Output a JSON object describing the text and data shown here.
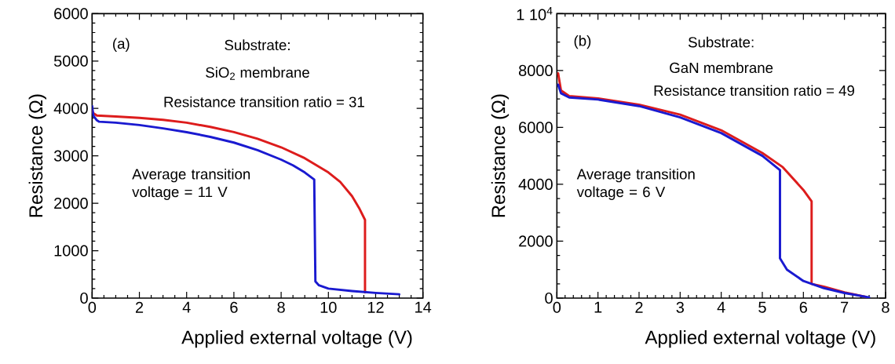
{
  "chart_data": [
    {
      "type": "line",
      "xlabel": "Applied external voltage (V)",
      "ylabel": "Resistance (Ω)",
      "xlim": [
        0,
        14
      ],
      "ylim": [
        0,
        6000
      ],
      "xticks": [
        0,
        2,
        4,
        6,
        8,
        10,
        12,
        14
      ],
      "yticks": [
        0,
        1000,
        2000,
        3000,
        4000,
        5000,
        6000
      ],
      "annotations": [
        "(a)",
        "Substrate:",
        "SiO$_{2}$ membrane",
        "Resistance transition ratio = 31",
        "Average transition voltage = 11 V"
      ],
      "series": [
        {
          "color": "#dd1c1c",
          "x": [
            0,
            0.05,
            0.2,
            1,
            2,
            3,
            4,
            5,
            6,
            7,
            8,
            9,
            10,
            10.5,
            11,
            11.3,
            11.5,
            11.55,
            11.55
          ],
          "values": [
            3950,
            3900,
            3850,
            3830,
            3800,
            3760,
            3700,
            3610,
            3500,
            3360,
            3180,
            2950,
            2650,
            2450,
            2150,
            1900,
            1700,
            1650,
            120
          ]
        },
        {
          "color": "#1a1ad0",
          "x": [
            0,
            0.05,
            0.2,
            0.3,
            1,
            2,
            3,
            4,
            5,
            6,
            7,
            8,
            8.5,
            9,
            9.4,
            9.45,
            9.6,
            10,
            11,
            12,
            13
          ],
          "values": [
            4050,
            3850,
            3750,
            3720,
            3700,
            3650,
            3580,
            3500,
            3400,
            3280,
            3120,
            2920,
            2800,
            2650,
            2500,
            350,
            270,
            200,
            150,
            110,
            80
          ]
        }
      ]
    },
    {
      "type": "line",
      "xlabel": "Applied external voltage (V)",
      "ylabel": "Resistance (Ω)",
      "xlim": [
        0,
        8
      ],
      "ylim": [
        0,
        10000
      ],
      "xticks": [
        0,
        1,
        2,
        3,
        4,
        5,
        6,
        7,
        8
      ],
      "yticks": [
        0,
        2000,
        4000,
        6000,
        8000,
        {
          "value": 10000,
          "label": "1 10$^{4}$"
        }
      ],
      "annotations": [
        "(b)",
        "Substrate:",
        "GaN membrane",
        "Resistance transition ratio = 49",
        "Average transition voltage = 6 V"
      ],
      "series": [
        {
          "color": "#dd1c1c",
          "x": [
            0.03,
            0.1,
            0.3,
            1,
            2,
            3,
            4,
            5,
            5.5,
            6,
            6.2,
            6.2,
            6.5,
            7,
            7.5
          ],
          "values": [
            7900,
            7300,
            7100,
            7020,
            6800,
            6450,
            5900,
            5100,
            4600,
            3800,
            3400,
            500,
            400,
            200,
            50
          ]
        },
        {
          "color": "#1a1ad0",
          "x": [
            0.03,
            0.1,
            0.3,
            1,
            2,
            3,
            4,
            5,
            5.43,
            5.43,
            5.6,
            6,
            6.5,
            7,
            7.5,
            7.6
          ],
          "values": [
            7500,
            7200,
            7050,
            6980,
            6750,
            6350,
            5800,
            5000,
            4500,
            1400,
            1000,
            600,
            350,
            180,
            50,
            20
          ]
        }
      ]
    }
  ]
}
